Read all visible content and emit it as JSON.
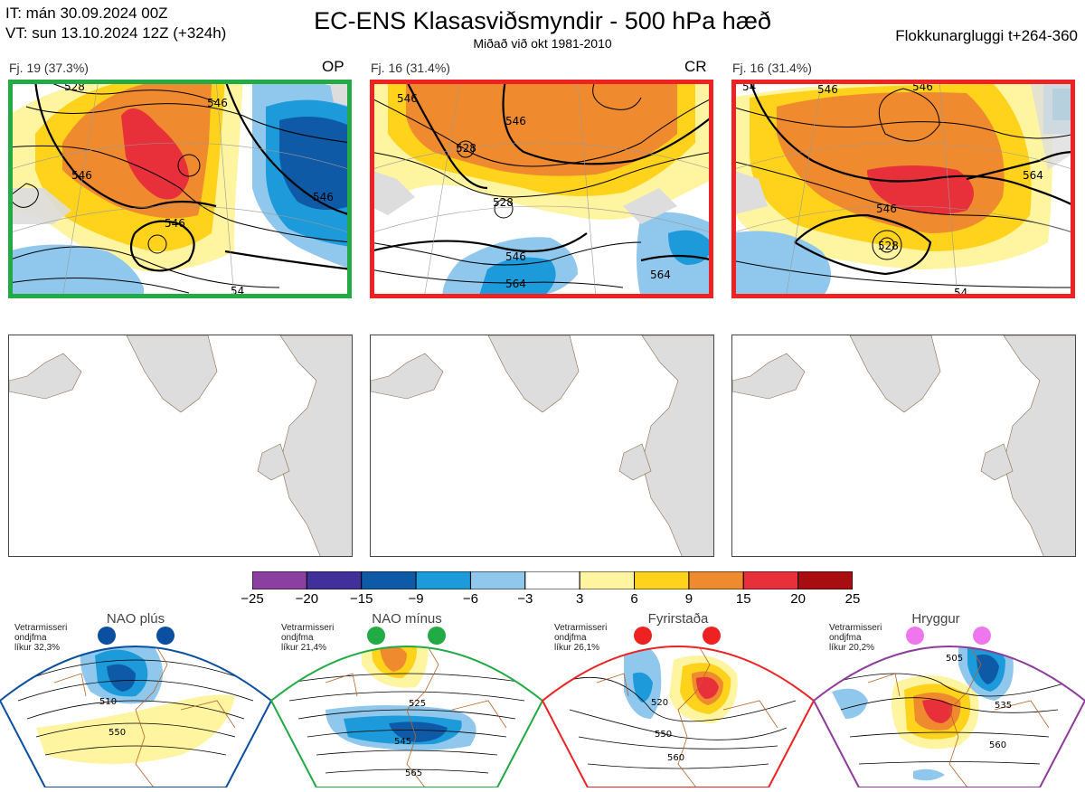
{
  "header": {
    "it_line": "IT: mán 30.09.2024 00Z",
    "vt_line": "VT: sun 13.10.2024 12Z  (+324h)",
    "title": "EC-ENS Klasasviðsmyndir - 500 hPa hæð",
    "subtitle": "Miðað við okt 1981-2010",
    "window": "Flokkunargluggi t+264-360"
  },
  "panels": [
    {
      "label": "Fj. 19 (37.3%)",
      "code": "OP",
      "frame_color": "#22aa44",
      "contour_labels": [
        "528",
        "546",
        "546",
        "546",
        "546",
        "54"
      ]
    },
    {
      "label": "Fj. 16 (31.4%)",
      "code": "CR",
      "frame_color": "#ee2222",
      "contour_labels": [
        "546",
        "528",
        "546",
        "528",
        "546",
        "564",
        "564"
      ]
    },
    {
      "label": "Fj. 16 (31.4%)",
      "code": "",
      "frame_color": "#ee2222",
      "contour_labels": [
        "54",
        "546",
        "546",
        "564",
        "546",
        "528",
        "54"
      ]
    }
  ],
  "colorbar": {
    "ticks": [
      "−25",
      "−20",
      "−15",
      "−9",
      "−6",
      "−3",
      "3",
      "6",
      "9",
      "15",
      "20",
      "25"
    ],
    "colors": [
      "#8b3fa0",
      "#42309a",
      "#0e5aa7",
      "#1c9ad9",
      "#8fc8ec",
      "#ffffff",
      "#fff4a0",
      "#ffd21c",
      "#f08a2e",
      "#e8303a",
      "#a80d12"
    ]
  },
  "regimes": [
    {
      "title": "NAO plús",
      "caption": [
        "Vetrarmisseri",
        "ondjfma",
        "líkur 32,3%"
      ],
      "dot_color": "#0b4fa0",
      "frame_color": "#0b4fa0",
      "contour_labels": [
        "510",
        "550"
      ]
    },
    {
      "title": "NAO mínus",
      "caption": [
        "Vetrarmisseri",
        "ondjfma",
        "líkur 21,4%"
      ],
      "dot_color": "#22aa44",
      "frame_color": "#22aa44",
      "contour_labels": [
        "525",
        "545",
        "565"
      ]
    },
    {
      "title": "Fyrirstaða",
      "caption": [
        "Vetrarmisseri",
        "ondjfma",
        "líkur 26,1%"
      ],
      "dot_color": "#ee2222",
      "frame_color": "#ee2222",
      "contour_labels": [
        "520",
        "550",
        "560"
      ]
    },
    {
      "title": "Hryggur",
      "caption": [
        "Vetrarmisseri",
        "ondjfma",
        "líkur 20,2%"
      ],
      "dot_color": "#ee77ee",
      "frame_color": "#8e3c9a",
      "contour_labels": [
        "505",
        "535",
        "560"
      ]
    }
  ]
}
